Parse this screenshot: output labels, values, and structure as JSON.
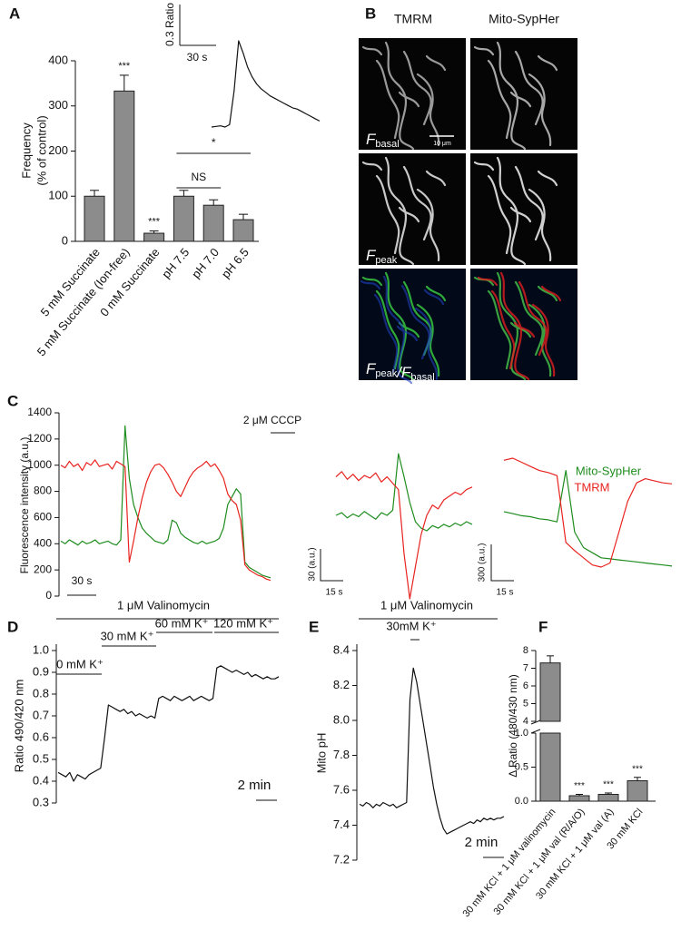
{
  "panel_a": {
    "letter": "A",
    "type": "bar",
    "ylabel": [
      "Frequency",
      "(% of control)"
    ],
    "categories": [
      "5 mM Succinate",
      "5 mM Succinate (Ion-free)",
      "0 mM Succinate",
      "pH 7.5",
      "pH 7.0",
      "pH 6.5"
    ],
    "values": [
      100,
      333,
      18,
      100,
      80,
      48
    ],
    "errors": [
      13,
      35,
      5,
      13,
      12,
      12
    ],
    "color": "#8c8c8c",
    "ylim": [
      0,
      400
    ],
    "yticks": [
      0,
      100,
      200,
      300,
      400
    ],
    "significance": [
      {
        "label": "***",
        "category": 1
      },
      {
        "label": "***",
        "category": 2
      }
    ],
    "comparisons": [
      {
        "label": "NS",
        "from": 3,
        "to": 4
      },
      {
        "label": "*",
        "from": 3,
        "to": 5
      }
    ],
    "inset": {
      "scale_y": "0.3 Ratio",
      "scale_x": "30 s",
      "values": [
        0,
        0.005,
        0.01,
        0,
        0.02,
        0.3,
        0.72,
        0.62,
        0.5,
        0.42,
        0.36,
        0.32,
        0.29,
        0.26,
        0.24,
        0.22,
        0.2,
        0.18,
        0.16,
        0.15,
        0.13,
        0.11,
        0.09,
        0.07,
        0.05
      ]
    }
  },
  "panel_b": {
    "letter": "B",
    "columns": [
      "TMRM",
      "Mito-SypHer"
    ],
    "rows": [
      [
        {
          "main": "F",
          "sub": "basal"
        }
      ],
      [
        {
          "main": "F",
          "sub": "peak"
        }
      ],
      [
        {
          "main": "F",
          "sub": "peak"
        },
        {
          "main": "/F",
          "sub": "basal"
        }
      ]
    ],
    "scale": "10 μm"
  },
  "panel_c": {
    "letter": "C",
    "type": "line",
    "ylabel": "Fluorescence intensity (a.u.)",
    "ylim": [
      0,
      1400
    ],
    "yticks": [
      0,
      200,
      400,
      600,
      800,
      1000,
      1200,
      1400
    ],
    "drug": "2 μM CCCP",
    "scale_x": "30 s",
    "series": [
      {
        "name": "Mito-SypHer",
        "color": "#1e8c1e",
        "values": [
          420,
          400,
          430,
          410,
          390,
          420,
          400,
          410,
          430,
          400,
          410,
          420,
          400,
          390,
          430,
          1300,
          900,
          700,
          600,
          520,
          480,
          450,
          420,
          410,
          400,
          430,
          580,
          560,
          480,
          450,
          430,
          410,
          400,
          420,
          400,
          410,
          420,
          440,
          520,
          700,
          760,
          820,
          780,
          260,
          220,
          200,
          180,
          160,
          150,
          140
        ]
      },
      {
        "name": "TMRM",
        "color": "#e8231f",
        "values": [
          1000,
          980,
          1030,
          990,
          1010,
          960,
          1020,
          1000,
          1040,
          990,
          1000,
          1010,
          970,
          1030,
          1010,
          990,
          260,
          420,
          600,
          750,
          870,
          950,
          1000,
          1010,
          980,
          930,
          870,
          800,
          760,
          830,
          900,
          950,
          980,
          1000,
          1030,
          990,
          1010,
          960,
          900,
          780,
          730,
          700,
          580,
          240,
          200,
          180,
          160,
          150,
          130,
          120
        ]
      }
    ],
    "insets": [
      {
        "scale_y": "30 (a.u.)",
        "scale_x": "15 s",
        "series": [
          {
            "values": [
              70,
              72,
              68,
              71,
              69,
              73,
              70,
              67,
              72,
              70,
              74,
              118,
              100,
              80,
              65,
              60,
              58,
              62,
              60,
              63,
              61,
              64,
              62,
              65,
              63
            ]
          },
          {
            "values": [
              100,
              104,
              98,
              102,
              97,
              101,
              99,
              103,
              96,
              100,
              95,
              90,
              40,
              5,
              30,
              55,
              70,
              78,
              75,
              82,
              85,
              88,
              86,
              90,
              92
            ]
          }
        ]
      },
      {
        "scale_y": "300 (a.u.)",
        "scale_x": "15 s",
        "series": [
          {
            "values": [
              60,
              58,
              56,
              55,
              53,
              52,
              50,
              100,
              40,
              25,
              20,
              15,
              14,
              13,
              12,
              11,
              10,
              9,
              8,
              7
            ]
          },
          {
            "values": [
              110,
              112,
              108,
              104,
              100,
              98,
              95,
              30,
              22,
              15,
              8,
              6,
              10,
              40,
              70,
              88,
              92,
              90,
              88,
              87
            ]
          }
        ]
      }
    ]
  },
  "panel_d": {
    "letter": "D",
    "type": "line",
    "ylabel": "Ratio 490/420 nm",
    "ylim": [
      0.3,
      1.0
    ],
    "yticks": [
      0.3,
      0.4,
      0.5,
      0.6,
      0.7,
      0.8,
      0.9,
      {
        "value": 1,
        "label": "1.0"
      }
    ],
    "bath": "1 μM Valinomycin",
    "steps": [
      "0 mM K⁺",
      "30 mM K⁺",
      "60 mM K⁺",
      "120 mM K⁺"
    ],
    "scale_x": "2 min",
    "values": [
      0.44,
      0.43,
      0.42,
      0.44,
      0.4,
      0.43,
      0.42,
      0.41,
      0.43,
      0.44,
      0.45,
      0.46,
      0.6,
      0.75,
      0.74,
      0.73,
      0.72,
      0.73,
      0.71,
      0.72,
      0.7,
      0.71,
      0.7,
      0.69,
      0.7,
      0.69,
      0.78,
      0.79,
      0.78,
      0.77,
      0.79,
      0.78,
      0.77,
      0.78,
      0.79,
      0.77,
      0.78,
      0.79,
      0.78,
      0.77,
      0.78,
      0.92,
      0.93,
      0.92,
      0.91,
      0.9,
      0.91,
      0.9,
      0.89,
      0.9,
      0.88,
      0.89,
      0.88,
      0.87,
      0.88,
      0.87,
      0.87,
      0.88
    ]
  },
  "panel_e": {
    "letter": "E",
    "type": "line",
    "ylabel": "Mito pH",
    "ylim": [
      7.2,
      8.4
    ],
    "yticks": [
      7.2,
      7.4,
      7.6,
      7.8,
      {
        "value": 8,
        "label": "8.0"
      },
      8.2,
      8.4
    ],
    "bath": "1 μM Valinomycin",
    "step": "30mM K⁺",
    "scale_x": "2 min",
    "values": [
      7.52,
      7.51,
      7.53,
      7.52,
      7.5,
      7.52,
      7.51,
      7.53,
      7.52,
      7.51,
      7.52,
      7.5,
      7.51,
      7.52,
      7.53,
      8.12,
      8.3,
      8.22,
      8.1,
      7.98,
      7.86,
      7.74,
      7.62,
      7.52,
      7.44,
      7.38,
      7.35,
      7.36,
      7.37,
      7.38,
      7.39,
      7.4,
      7.41,
      7.42,
      7.41,
      7.43,
      7.42,
      7.44,
      7.43,
      7.44,
      7.43,
      7.44,
      7.44,
      7.45
    ]
  },
  "panel_f": {
    "letter": "F",
    "type": "bar",
    "ylabel": "Δ Ratio (480/430 nm)",
    "categories": [
      "30 mM KCl + 1 μM valinomycin",
      "30 mM KCl + 1 μM val (R/A/O)",
      "30 mM KCl + 1 μM val (A)",
      "30 mM KCl"
    ],
    "values": [
      7.3,
      0.08,
      0.1,
      0.3
    ],
    "errors": [
      0.4,
      0.02,
      0.02,
      0.05
    ],
    "color": "#8c8c8c",
    "ylim_lower": [
      0,
      1
    ],
    "yticks_lower": [
      {
        "value": 0,
        "label": "0.0"
      },
      0.5,
      {
        "value": 1,
        "label": "1.0"
      }
    ],
    "ylim_upper": [
      4,
      8
    ],
    "yticks_upper": [
      4,
      5,
      6,
      7,
      8
    ],
    "significance": [
      {
        "label": "***",
        "category": 1
      },
      {
        "label": "***",
        "category": 2
      },
      {
        "label": "***",
        "category": 3
      }
    ]
  }
}
